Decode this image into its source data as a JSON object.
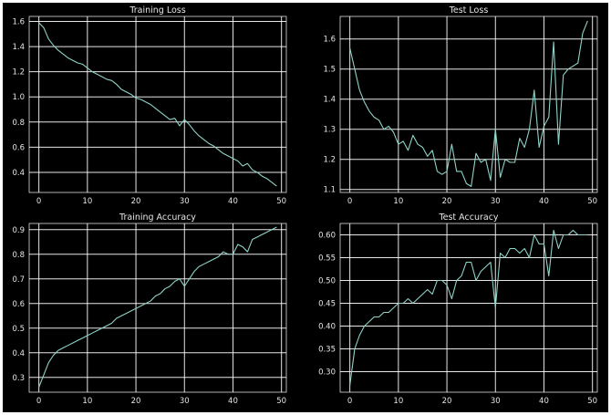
{
  "colors": {
    "background": "#000000",
    "grid": "#ffffff",
    "text": "#e6e6e6",
    "series": "#8fd3c8"
  },
  "chart_data": [
    {
      "type": "line",
      "title": "Training Loss",
      "grid": true,
      "xlim": [
        -2,
        51
      ],
      "ylim": [
        0.24,
        1.64
      ],
      "xticks": [
        0,
        10,
        20,
        30,
        40,
        50
      ],
      "yticks": [
        0.4,
        0.6,
        0.8,
        1.0,
        1.2,
        1.4,
        1.6
      ],
      "ytick_labels": [
        "0.4",
        "0.6",
        "0.8",
        "1.0",
        "1.2",
        "1.4",
        "1.6"
      ],
      "series": [
        {
          "x": [
            0,
            1,
            2,
            3,
            4,
            5,
            6,
            7,
            8,
            9,
            10,
            11,
            12,
            13,
            14,
            15,
            16,
            17,
            18,
            19,
            20,
            21,
            22,
            23,
            24,
            25,
            26,
            27,
            28,
            29,
            30,
            31,
            32,
            33,
            34,
            35,
            36,
            37,
            38,
            39,
            40,
            41,
            42,
            43,
            44,
            45,
            46,
            47,
            48,
            49
          ],
          "y": [
            1.59,
            1.55,
            1.46,
            1.41,
            1.37,
            1.34,
            1.31,
            1.29,
            1.27,
            1.26,
            1.23,
            1.2,
            1.18,
            1.16,
            1.14,
            1.13,
            1.1,
            1.06,
            1.04,
            1.02,
            0.99,
            0.98,
            0.96,
            0.94,
            0.91,
            0.88,
            0.85,
            0.82,
            0.83,
            0.77,
            0.82,
            0.78,
            0.73,
            0.69,
            0.66,
            0.63,
            0.61,
            0.58,
            0.55,
            0.53,
            0.51,
            0.49,
            0.45,
            0.47,
            0.42,
            0.4,
            0.37,
            0.35,
            0.32,
            0.29
          ]
        }
      ]
    },
    {
      "type": "line",
      "title": "Test Loss",
      "grid": true,
      "xlim": [
        -2,
        51
      ],
      "ylim": [
        1.09,
        1.675
      ],
      "xticks": [
        0,
        10,
        20,
        30,
        40,
        50
      ],
      "yticks": [
        1.1,
        1.2,
        1.3,
        1.4,
        1.5,
        1.6
      ],
      "ytick_labels": [
        "1.1",
        "1.2",
        "1.3",
        "1.4",
        "1.5",
        "1.6"
      ],
      "series": [
        {
          "x": [
            0,
            1,
            2,
            3,
            4,
            5,
            6,
            7,
            8,
            9,
            10,
            11,
            12,
            13,
            14,
            15,
            16,
            17,
            18,
            19,
            20,
            21,
            22,
            23,
            24,
            25,
            26,
            27,
            28,
            29,
            30,
            31,
            32,
            33,
            34,
            35,
            36,
            37,
            38,
            39,
            40,
            41,
            42,
            43,
            44,
            45,
            46,
            47,
            48,
            49
          ],
          "y": [
            1.57,
            1.5,
            1.43,
            1.39,
            1.36,
            1.34,
            1.33,
            1.3,
            1.31,
            1.29,
            1.25,
            1.26,
            1.23,
            1.28,
            1.25,
            1.24,
            1.21,
            1.23,
            1.16,
            1.15,
            1.16,
            1.25,
            1.16,
            1.16,
            1.12,
            1.11,
            1.22,
            1.19,
            1.2,
            1.13,
            1.3,
            1.14,
            1.2,
            1.19,
            1.19,
            1.27,
            1.24,
            1.3,
            1.43,
            1.24,
            1.31,
            1.34,
            1.59,
            1.25,
            1.48,
            1.5,
            1.51,
            1.52,
            1.62,
            1.66
          ]
        }
      ]
    },
    {
      "type": "line",
      "title": "Training Accuracy",
      "grid": true,
      "xlim": [
        -2,
        51
      ],
      "ylim": [
        0.24,
        0.925
      ],
      "xticks": [
        0,
        10,
        20,
        30,
        40,
        50
      ],
      "yticks": [
        0.3,
        0.4,
        0.5,
        0.6,
        0.7,
        0.8,
        0.9
      ],
      "ytick_labels": [
        "0.3",
        "0.4",
        "0.5",
        "0.6",
        "0.7",
        "0.8",
        "0.9"
      ],
      "series": [
        {
          "x": [
            0,
            1,
            2,
            3,
            4,
            5,
            6,
            7,
            8,
            9,
            10,
            11,
            12,
            13,
            14,
            15,
            16,
            17,
            18,
            19,
            20,
            21,
            22,
            23,
            24,
            25,
            26,
            27,
            28,
            29,
            30,
            31,
            32,
            33,
            34,
            35,
            36,
            37,
            38,
            39,
            40,
            41,
            42,
            43,
            44,
            45,
            46,
            47,
            48,
            49
          ],
          "y": [
            0.26,
            0.31,
            0.36,
            0.39,
            0.41,
            0.42,
            0.43,
            0.44,
            0.45,
            0.46,
            0.47,
            0.48,
            0.49,
            0.5,
            0.51,
            0.52,
            0.54,
            0.55,
            0.56,
            0.57,
            0.58,
            0.59,
            0.6,
            0.61,
            0.63,
            0.64,
            0.66,
            0.67,
            0.69,
            0.7,
            0.67,
            0.7,
            0.73,
            0.75,
            0.76,
            0.77,
            0.78,
            0.79,
            0.81,
            0.8,
            0.8,
            0.84,
            0.83,
            0.81,
            0.86,
            0.87,
            0.88,
            0.89,
            0.9,
            0.91
          ]
        }
      ]
    },
    {
      "type": "line",
      "title": "Test Accuracy",
      "grid": true,
      "xlim": [
        -2,
        51
      ],
      "ylim": [
        0.255,
        0.625
      ],
      "xticks": [
        0,
        10,
        20,
        30,
        40,
        50
      ],
      "yticks": [
        0.3,
        0.35,
        0.4,
        0.45,
        0.5,
        0.55,
        0.6
      ],
      "ytick_labels": [
        "0.30",
        "0.35",
        "0.40",
        "0.45",
        "0.50",
        "0.55",
        "0.60"
      ],
      "series": [
        {
          "x": [
            0,
            1,
            2,
            3,
            4,
            5,
            6,
            7,
            8,
            9,
            10,
            11,
            12,
            13,
            14,
            15,
            16,
            17,
            18,
            19,
            20,
            21,
            22,
            23,
            24,
            25,
            26,
            27,
            28,
            29,
            30,
            31,
            32,
            33,
            34,
            35,
            36,
            37,
            38,
            39,
            40,
            41,
            42,
            43,
            44,
            45,
            46,
            47,
            48,
            49
          ],
          "y": [
            0.27,
            0.35,
            0.38,
            0.4,
            0.41,
            0.42,
            0.42,
            0.43,
            0.43,
            0.44,
            0.45,
            0.45,
            0.46,
            0.45,
            0.46,
            0.47,
            0.48,
            0.47,
            0.5,
            0.5,
            0.49,
            0.46,
            0.5,
            0.51,
            0.54,
            0.54,
            0.5,
            0.52,
            0.53,
            0.54,
            0.44,
            0.56,
            0.55,
            0.57,
            0.57,
            0.56,
            0.57,
            0.55,
            0.6,
            0.58,
            0.58,
            0.51,
            0.61,
            0.57,
            0.6,
            0.6,
            0.61,
            0.6,
            0.6,
            0.6
          ]
        }
      ]
    }
  ]
}
